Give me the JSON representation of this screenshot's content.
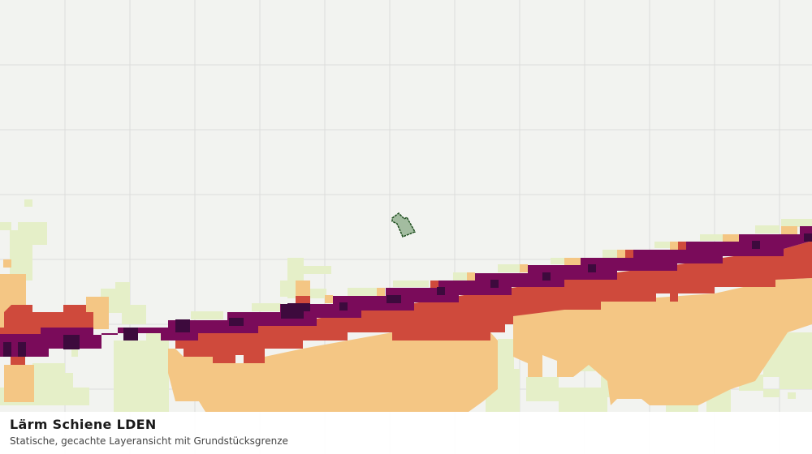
{
  "panel": {
    "title": "Lärm Schiene LDEN",
    "subtitle": "Statische, gecachte Layeransicht mit Grundstücksgrenze"
  }
}
